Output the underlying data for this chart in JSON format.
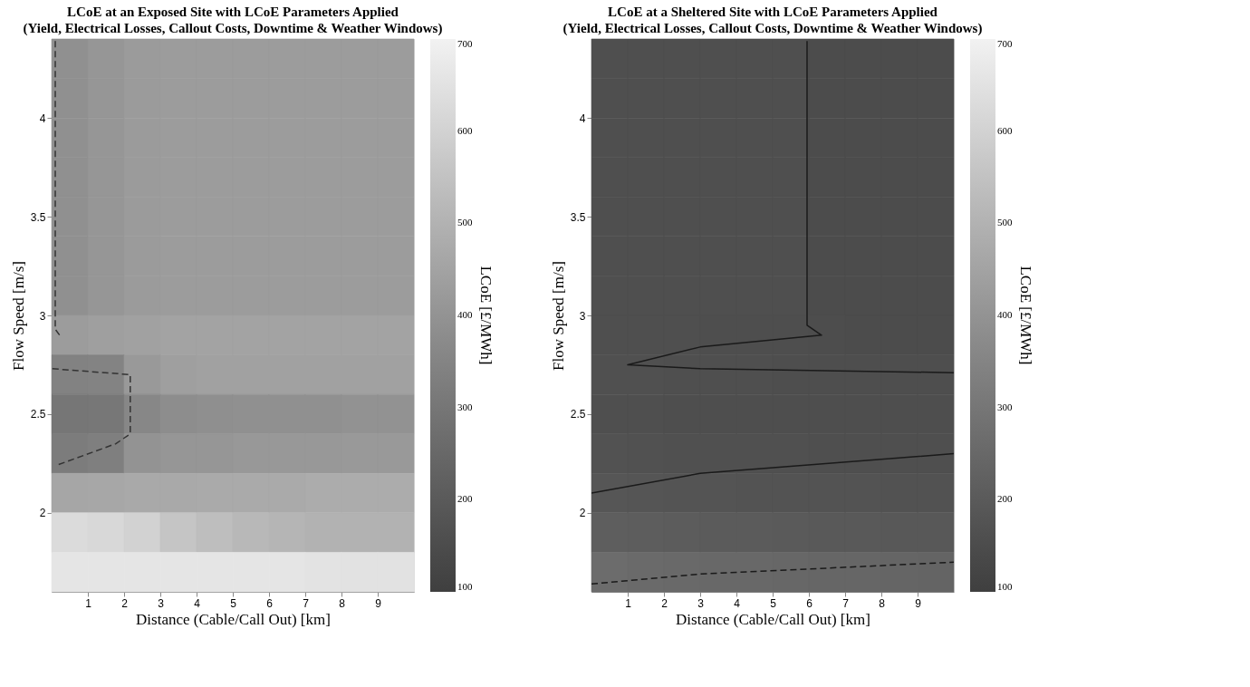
{
  "chart_data": [
    {
      "type": "heatmap",
      "title": "LCoE at an Exposed Site with LCoE Parameters Applied",
      "subtitle": "(Yield, Electrical Losses, Callout Costs, Downtime & Weather Windows)",
      "xlabel": "Distance (Cable/Call Out) [km]",
      "ylabel": "Flow Speed [m/s]",
      "clabel": "LCoE [£/MWh]",
      "x": [
        0.5,
        1.5,
        2.5,
        3.5,
        4.5,
        5.5,
        6.5,
        7.5,
        8.5,
        9.5
      ],
      "y": [
        4.3,
        4.1,
        3.9,
        3.7,
        3.5,
        3.3,
        3.1,
        2.9,
        2.7,
        2.5,
        2.3,
        2.1,
        1.9,
        1.7
      ],
      "cells": [
        [
          390,
          410,
          425,
          430,
          430,
          430,
          430,
          430,
          430,
          430
        ],
        [
          390,
          410,
          425,
          430,
          430,
          430,
          430,
          430,
          430,
          430
        ],
        [
          390,
          410,
          425,
          430,
          430,
          430,
          430,
          430,
          430,
          430
        ],
        [
          390,
          410,
          425,
          430,
          430,
          430,
          430,
          430,
          430,
          430
        ],
        [
          390,
          410,
          425,
          430,
          430,
          430,
          430,
          430,
          430,
          430
        ],
        [
          390,
          410,
          425,
          430,
          430,
          430,
          430,
          430,
          430,
          430
        ],
        [
          390,
          410,
          425,
          430,
          430,
          430,
          430,
          430,
          430,
          430
        ],
        [
          430,
          440,
          445,
          450,
          450,
          450,
          450,
          450,
          450,
          450
        ],
        [
          340,
          345,
          420,
          440,
          445,
          445,
          445,
          445,
          445,
          445
        ],
        [
          300,
          305,
          360,
          380,
          385,
          390,
          390,
          390,
          395,
          395
        ],
        [
          320,
          330,
          400,
          410,
          410,
          415,
          415,
          415,
          420,
          420
        ],
        [
          460,
          465,
          470,
          470,
          475,
          475,
          475,
          480,
          480,
          480
        ],
        [
          630,
          620,
          600,
          560,
          540,
          520,
          510,
          500,
          500,
          500
        ],
        [
          660,
          660,
          660,
          660,
          660,
          660,
          660,
          655,
          650,
          650
        ]
      ],
      "xlim": [
        0,
        10
      ],
      "ylim": [
        1.6,
        4.4
      ],
      "xticks": [
        1,
        2,
        3,
        4,
        5,
        6,
        7,
        8,
        9
      ],
      "yticks": [
        2,
        2.5,
        3,
        3.5,
        4
      ],
      "clim": [
        100,
        700
      ],
      "cticks": [
        100,
        200,
        300,
        400,
        500,
        600,
        700
      ],
      "series": [
        {
          "type": "line",
          "line_style": "dashed",
          "color": "#333333",
          "x": [
            0.1,
            0.1,
            0.22,
            0.17
          ],
          "values": [
            4.39,
            2.93,
            2.9,
            2.89
          ]
        },
        {
          "type": "line",
          "line_style": "dashed",
          "color": "#333333",
          "x": [
            0.02,
            2.17,
            2.17,
            1.77,
            0.12
          ],
          "values": [
            2.73,
            2.7,
            2.4,
            2.35,
            2.24
          ]
        }
      ]
    },
    {
      "type": "heatmap",
      "title": "LCoE at a Sheltered Site with LCoE Parameters Applied",
      "subtitle": "(Yield, Electrical Losses, Callout Costs, Downtime & Weather Windows)",
      "xlabel": "Distance (Cable/Call Out) [km]",
      "ylabel": "Flow Speed [m/s]",
      "clabel": "LCoE [£/MWh]",
      "x": [
        0.5,
        1.5,
        2.5,
        3.5,
        4.5,
        5.5,
        6.5,
        7.5,
        8.5,
        9.5
      ],
      "y": [
        4.3,
        4.1,
        3.9,
        3.7,
        3.5,
        3.3,
        3.1,
        2.9,
        2.7,
        2.5,
        2.3,
        2.1,
        1.9,
        1.7
      ],
      "cells": [
        [
          160,
          160,
          160,
          160,
          160,
          160,
          150,
          150,
          150,
          150
        ],
        [
          160,
          160,
          160,
          160,
          160,
          160,
          150,
          150,
          150,
          150
        ],
        [
          160,
          160,
          160,
          160,
          160,
          160,
          150,
          150,
          150,
          150
        ],
        [
          160,
          160,
          160,
          160,
          160,
          160,
          150,
          150,
          150,
          150
        ],
        [
          160,
          160,
          160,
          160,
          160,
          160,
          150,
          150,
          150,
          150
        ],
        [
          160,
          160,
          160,
          160,
          160,
          160,
          150,
          150,
          150,
          150
        ],
        [
          160,
          160,
          160,
          160,
          160,
          160,
          150,
          150,
          150,
          150
        ],
        [
          160,
          160,
          160,
          158,
          158,
          158,
          152,
          150,
          150,
          150
        ],
        [
          165,
          165,
          162,
          160,
          160,
          158,
          158,
          158,
          158,
          158
        ],
        [
          160,
          160,
          158,
          158,
          158,
          158,
          158,
          158,
          158,
          158
        ],
        [
          170,
          168,
          166,
          165,
          164,
          163,
          162,
          161,
          160,
          160
        ],
        [
          185,
          182,
          180,
          178,
          177,
          176,
          175,
          174,
          173,
          172
        ],
        [
          215,
          212,
          208,
          205,
          203,
          200,
          198,
          196,
          195,
          194
        ],
        [
          265,
          260,
          255,
          252,
          250,
          247,
          245,
          243,
          240,
          238
        ]
      ],
      "xlim": [
        0,
        10
      ],
      "ylim": [
        1.6,
        4.4
      ],
      "xticks": [
        1,
        2,
        3,
        4,
        5,
        6,
        7,
        8,
        9
      ],
      "yticks": [
        2,
        2.5,
        3,
        3.5,
        4
      ],
      "clim": [
        100,
        700
      ],
      "cticks": [
        100,
        200,
        300,
        400,
        500,
        600,
        700
      ],
      "series": [
        {
          "type": "line",
          "line_style": "solid",
          "color": "#1a1a1a",
          "x": [
            5.95,
            5.95,
            6.35,
            3.0,
            1.0,
            3.0,
            10.0
          ],
          "values": [
            4.39,
            2.95,
            2.9,
            2.84,
            2.75,
            2.73,
            2.71
          ]
        },
        {
          "type": "line",
          "line_style": "solid",
          "color": "#1a1a1a",
          "x": [
            0.0,
            3.0,
            10.0
          ],
          "values": [
            2.1,
            2.2,
            2.3
          ]
        },
        {
          "type": "line",
          "line_style": "dashed",
          "color": "#1a1a1a",
          "x": [
            0.0,
            3.0,
            10.0
          ],
          "values": [
            1.64,
            1.69,
            1.75
          ]
        }
      ]
    }
  ]
}
